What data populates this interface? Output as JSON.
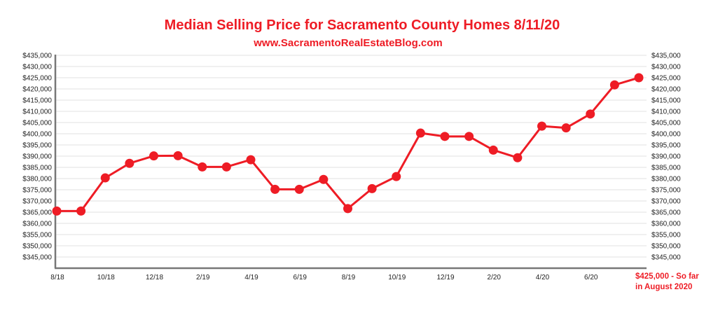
{
  "chart_data": {
    "type": "line",
    "title": "Median Selling Price for Sacramento County Homes 8/11/20",
    "subtitle": "www.SacramentoRealEstateBlog.com",
    "xlabel": "",
    "ylabel": "",
    "x": [
      "8/18",
      "9/18",
      "10/18",
      "11/18",
      "12/18",
      "1/19",
      "2/19",
      "3/19",
      "4/19",
      "5/19",
      "6/19",
      "7/19",
      "8/19",
      "9/19",
      "10/19",
      "11/19",
      "12/19",
      "1/20",
      "2/20",
      "3/20",
      "4/20",
      "5/20",
      "6/20",
      "7/20",
      "8/20"
    ],
    "x_tick_labels": [
      "8/18",
      "10/18",
      "12/18",
      "2/19",
      "4/19",
      "6/19",
      "8/19",
      "10/19",
      "12/19",
      "2/20",
      "4/20",
      "6/20"
    ],
    "series": [
      {
        "name": "Median Selling Price",
        "color": "#ee1c25",
        "values": [
          365500,
          365500,
          380300,
          386800,
          390100,
          390200,
          385200,
          385200,
          388400,
          375200,
          375200,
          379600,
          366600,
          375500,
          380900,
          400300,
          398800,
          398800,
          392700,
          389300,
          403400,
          402600,
          408800,
          421800,
          425000
        ]
      }
    ],
    "ylim": [
      340000,
      435000
    ],
    "y_ticks": [
      345000,
      350000,
      355000,
      360000,
      365000,
      370000,
      375000,
      380000,
      385000,
      390000,
      395000,
      400000,
      405000,
      410000,
      415000,
      420000,
      425000,
      430000,
      435000
    ],
    "y_tick_labels": [
      "$345,000",
      "$350,000",
      "$355,000",
      "$360,000",
      "$365,000",
      "$370,000",
      "$375,000",
      "$380,000",
      "$385,000",
      "$390,000",
      "$395,000",
      "$400,000",
      "$405,000",
      "$410,000",
      "$415,000",
      "$420,000",
      "$425,000",
      "$430,000",
      "$435,000"
    ],
    "grid": true,
    "legend": "none",
    "annotation": {
      "line1": "$425,000 - So far",
      "line2": "in August 2020"
    },
    "accent_color": "#ee1c25"
  }
}
